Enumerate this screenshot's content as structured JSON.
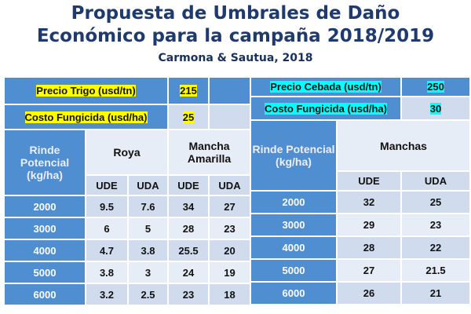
{
  "title": {
    "line1": "Propuesta de Umbrales de Daño",
    "line2": "Económico para la campaña 2018/2019",
    "author": "Carmona & Sautua, 2018"
  },
  "trigo": {
    "price_label": "Precio Trigo (usd/tn)",
    "price": "215",
    "cost_label": "Costo Fungicida (usd/ha)",
    "cost": "25",
    "rinde_header": "Rinde Potencial (kg/ha)",
    "disease1": "Roya",
    "disease2": "Mancha Amarilla",
    "ude": "UDE",
    "uda": "UDA",
    "rows": [
      [
        "2000",
        "9.5",
        "7.6",
        "34",
        "27"
      ],
      [
        "3000",
        "6",
        "5",
        "28",
        "23"
      ],
      [
        "4000",
        "4.7",
        "3.8",
        "25.5",
        "20"
      ],
      [
        "5000",
        "3.8",
        "3",
        "24",
        "19"
      ],
      [
        "6000",
        "3.2",
        "2.5",
        "23",
        "18"
      ]
    ]
  },
  "cebada": {
    "price_label": "Precio Cebada (usd/tn)",
    "price": "250",
    "cost_label": "Costo Fungicida (usd/ha)",
    "cost": "30",
    "rinde_header": "Rinde Potencial (kg/ha)",
    "disease": "Manchas",
    "ude": "UDE",
    "uda": "UDA",
    "rows": [
      [
        "2000",
        "32",
        "25"
      ],
      [
        "3000",
        "29",
        "23"
      ],
      [
        "4000",
        "28",
        "22"
      ],
      [
        "5000",
        "27",
        "21.5"
      ],
      [
        "6000",
        "26",
        "21"
      ]
    ]
  },
  "colors": {
    "header_blue": "#4f8ed0",
    "title": "#1f3a6e",
    "highlight_trigo": "#ffff00",
    "highlight_cebada": "#00ffff"
  }
}
